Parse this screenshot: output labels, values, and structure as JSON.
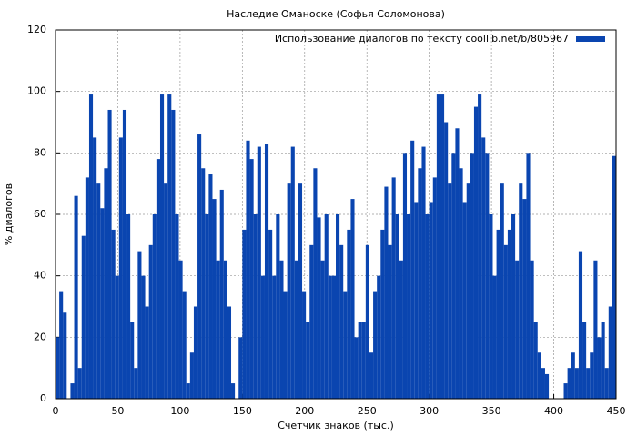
{
  "chart_data": {
    "type": "bar",
    "title": "Наследие Оманоске (Софья Соломонова)",
    "x_label": "Счетчик знаков (тыс.)",
    "y_label": "% диалогов",
    "xlim": [
      0,
      450
    ],
    "xticks": [
      0,
      50,
      100,
      150,
      200,
      250,
      300,
      350,
      400,
      450
    ],
    "ylim": [
      0,
      120
    ],
    "yticks": [
      0,
      20,
      40,
      60,
      80,
      100,
      120
    ],
    "grid": true,
    "legend": "top-right",
    "series": [
      {
        "name": "Использование диалогов по тексту coollib.net/b/805967",
        "color": "#0a45b0",
        "x": [
          0,
          3,
          6,
          9,
          12,
          15,
          18,
          21,
          24,
          27,
          30,
          33,
          36,
          39,
          42,
          45,
          48,
          51,
          54,
          57,
          60,
          63,
          66,
          69,
          72,
          75,
          78,
          81,
          84,
          87,
          90,
          93,
          96,
          99,
          102,
          105,
          108,
          111,
          114,
          117,
          120,
          123,
          126,
          129,
          132,
          135,
          138,
          141,
          144,
          147,
          150,
          153,
          156,
          159,
          162,
          165,
          168,
          171,
          174,
          177,
          180,
          183,
          186,
          189,
          192,
          195,
          198,
          201,
          204,
          207,
          210,
          213,
          216,
          219,
          222,
          225,
          228,
          231,
          234,
          237,
          240,
          243,
          246,
          249,
          252,
          255,
          258,
          261,
          264,
          267,
          270,
          273,
          276,
          279,
          282,
          285,
          288,
          291,
          294,
          297,
          300,
          303,
          306,
          309,
          312,
          315,
          318,
          321,
          324,
          327,
          330,
          333,
          336,
          339,
          342,
          345,
          348,
          351,
          354,
          357,
          360,
          363,
          366,
          369,
          372,
          375,
          378,
          381,
          384,
          387,
          390,
          393,
          396,
          399,
          402,
          405,
          408,
          411,
          414,
          417,
          420,
          423,
          426,
          429,
          432,
          435,
          438,
          441,
          444,
          447
        ],
        "values": [
          20,
          35,
          28,
          0,
          5,
          66,
          10,
          53,
          72,
          99,
          85,
          70,
          62,
          75,
          94,
          55,
          40,
          85,
          94,
          60,
          25,
          10,
          48,
          40,
          30,
          50,
          60,
          78,
          99,
          70,
          99,
          94,
          60,
          45,
          35,
          5,
          15,
          30,
          86,
          75,
          60,
          73,
          65,
          45,
          68,
          45,
          30,
          5,
          0,
          20,
          55,
          84,
          78,
          60,
          82,
          40,
          83,
          55,
          40,
          60,
          45,
          35,
          70,
          82,
          45,
          70,
          35,
          25,
          50,
          75,
          59,
          45,
          60,
          40,
          40,
          60,
          50,
          35,
          55,
          65,
          20,
          25,
          25,
          50,
          15,
          35,
          40,
          55,
          69,
          50,
          72,
          60,
          45,
          80,
          60,
          84,
          64,
          75,
          82,
          60,
          64,
          72,
          99,
          99,
          90,
          70,
          80,
          88,
          75,
          64,
          70,
          80,
          95,
          99,
          85,
          80,
          60,
          40,
          55,
          70,
          50,
          55,
          60,
          45,
          70,
          65,
          80,
          45,
          25,
          15,
          10,
          8,
          0,
          0,
          0,
          0,
          5,
          10,
          15,
          10,
          48,
          25,
          10,
          15,
          45,
          20,
          25,
          10,
          30,
          79
        ]
      }
    ]
  }
}
